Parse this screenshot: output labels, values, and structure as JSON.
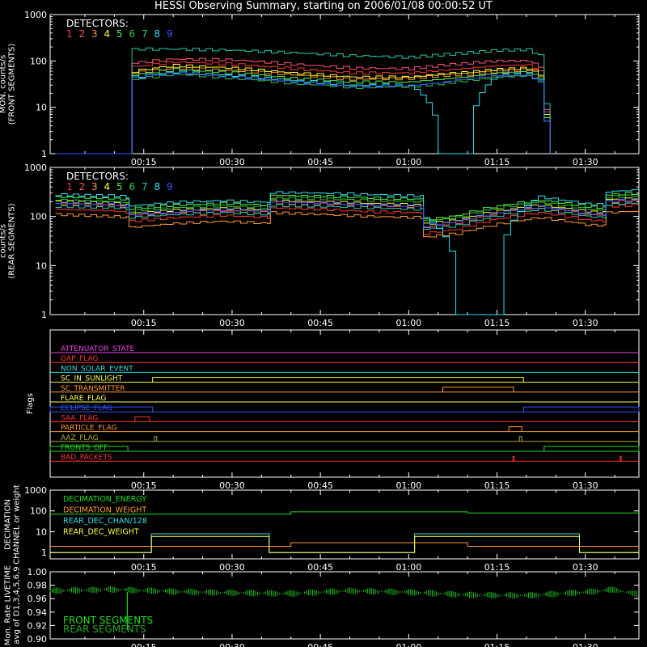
{
  "title": "HESSI Observing Summary, starting on 2006/01/08 00:00:52 UT",
  "colors": {
    "bg": "#000000",
    "axis": "#ffffff",
    "d1": "#ff3333",
    "d2": "#ff5577",
    "d3": "#ff9933",
    "d4": "#ffff33",
    "d5": "#55ee55",
    "d6": "#33cc33",
    "d7": "#22ccaa",
    "d8": "#33ddee",
    "d9": "#3355ff",
    "olive": "#aaaa33",
    "green": "#22dd22"
  },
  "x_ticks": [
    "00:15",
    "00:30",
    "00:45",
    "01:00",
    "01:15",
    "01:30"
  ],
  "x_tick_minutes": [
    15,
    30,
    45,
    60,
    75,
    90
  ],
  "x_range_minutes": [
    -0.9,
    99.1
  ],
  "chart_data": [
    {
      "type": "line",
      "ylabel": [
        "MON. counts/s",
        "(FRONT SEGMENTS)"
      ],
      "yscale": "log",
      "ylim": [
        1,
        1000
      ],
      "y_ticks": [
        "1000",
        "100",
        "10",
        "1"
      ],
      "legend_title": "DETECTORS:",
      "legend": [
        "1",
        "2",
        "3",
        "4",
        "5",
        "6",
        "7",
        "8",
        "9"
      ],
      "x": [
        0,
        12.5,
        13,
        20,
        30,
        40,
        50,
        60,
        65,
        70,
        75,
        80,
        82,
        83,
        84
      ],
      "series": [
        {
          "name": "1",
          "values": [
            1,
            1,
            75,
            95,
            85,
            68,
            55,
            55,
            62,
            70,
            80,
            82,
            60,
            8,
            1
          ]
        },
        {
          "name": "2",
          "values": [
            1,
            1,
            90,
            110,
            105,
            85,
            70,
            68,
            80,
            90,
            100,
            100,
            75,
            9,
            1
          ]
        },
        {
          "name": "3",
          "values": [
            1,
            1,
            55,
            70,
            62,
            50,
            40,
            42,
            48,
            52,
            60,
            65,
            48,
            6,
            1
          ]
        },
        {
          "name": "4",
          "values": [
            1,
            1,
            60,
            80,
            70,
            55,
            45,
            45,
            52,
            58,
            66,
            70,
            52,
            7,
            1
          ]
        },
        {
          "name": "5",
          "values": [
            1,
            1,
            50,
            65,
            55,
            42,
            35,
            35,
            40,
            46,
            55,
            58,
            42,
            6,
            1
          ]
        },
        {
          "name": "6",
          "values": [
            1,
            1,
            40,
            52,
            42,
            33,
            27,
            28,
            32,
            38,
            45,
            48,
            35,
            5,
            1
          ]
        },
        {
          "name": "7",
          "values": [
            1,
            1,
            180,
            180,
            170,
            150,
            130,
            120,
            135,
            150,
            170,
            175,
            130,
            12,
            1
          ]
        },
        {
          "name": "8",
          "values": [
            1,
            1,
            45,
            58,
            48,
            38,
            30,
            30,
            1,
            1,
            50,
            52,
            38,
            5,
            1
          ]
        },
        {
          "name": "9",
          "values": [
            1,
            1,
            42,
            55,
            45,
            35,
            28,
            29,
            34,
            42,
            48,
            50,
            36,
            5,
            1
          ]
        }
      ]
    },
    {
      "type": "line",
      "ylabel": [
        "counts/s",
        "(REAR SEGMENTS)"
      ],
      "yscale": "log",
      "ylim": [
        1,
        1000
      ],
      "y_ticks": [
        "1000",
        "100",
        "10",
        "1"
      ],
      "legend_title": "DETECTORS:",
      "legend": [
        "1",
        "2",
        "3",
        "4",
        "5",
        "6",
        "7",
        "8",
        "9"
      ],
      "x": [
        0,
        5,
        10,
        12,
        12.5,
        20,
        28,
        36,
        36.5,
        45,
        53,
        62,
        62.5,
        68,
        75,
        82,
        90,
        93,
        93.5,
        99
      ],
      "series": [
        {
          "name": "1",
          "values": [
            140,
            135,
            130,
            120,
            80,
            95,
            105,
            95,
            150,
            140,
            125,
            120,
            45,
            55,
            90,
            120,
            85,
            80,
            160,
            170
          ]
        },
        {
          "name": "2",
          "values": [
            180,
            175,
            165,
            150,
            105,
            120,
            130,
            120,
            190,
            180,
            165,
            155,
            60,
            75,
            115,
            150,
            110,
            105,
            200,
            210
          ]
        },
        {
          "name": "3",
          "values": [
            110,
            105,
            100,
            95,
            60,
            72,
            80,
            72,
            120,
            110,
            100,
            95,
            38,
            45,
            70,
            95,
            68,
            65,
            120,
            130
          ]
        },
        {
          "name": "4",
          "values": [
            200,
            195,
            185,
            170,
            115,
            135,
            145,
            135,
            210,
            200,
            185,
            170,
            70,
            85,
            130,
            170,
            125,
            120,
            220,
            240
          ]
        },
        {
          "name": "5",
          "values": [
            250,
            240,
            230,
            220,
            145,
            170,
            185,
            170,
            270,
            260,
            240,
            225,
            85,
            105,
            165,
            215,
            160,
            150,
            280,
            300
          ]
        },
        {
          "name": "6",
          "values": [
            220,
            210,
            200,
            190,
            130,
            150,
            165,
            150,
            240,
            230,
            215,
            200,
            80,
            95,
            150,
            195,
            140,
            135,
            250,
            270
          ]
        },
        {
          "name": "7",
          "values": [
            160,
            155,
            150,
            140,
            95,
            110,
            120,
            110,
            170,
            160,
            150,
            140,
            55,
            65,
            105,
            140,
            100,
            95,
            175,
            190
          ]
        },
        {
          "name": "8",
          "values": [
            280,
            270,
            265,
            250,
            165,
            195,
            210,
            195,
            310,
            300,
            280,
            260,
            95,
            1,
            1,
            250,
            180,
            175,
            320,
            350
          ]
        },
        {
          "name": "9",
          "values": [
            190,
            185,
            175,
            160,
            110,
            128,
            140,
            128,
            200,
            190,
            175,
            165,
            65,
            80,
            122,
            160,
            118,
            112,
            210,
            225
          ]
        }
      ]
    },
    {
      "type": "line",
      "ylabel": [
        "Flags"
      ],
      "flags": [
        {
          "name": "ATTENUATOR_STATE",
          "color": "#ee44ee",
          "segments": []
        },
        {
          "name": "GAP_FLAG",
          "color": "#ff3333",
          "segments": []
        },
        {
          "name": "NON_SOLAR_EVENT",
          "color": "#33dddd",
          "segments": []
        },
        {
          "name": "SC_IN_SUNLIGHT",
          "color": "#ffff55",
          "segments": [
            [
              16.5,
              79.5
            ]
          ]
        },
        {
          "name": "SC_TRANSMITTER",
          "color": "#ff9933",
          "segments": [
            [
              65.8,
              77.8
            ]
          ]
        },
        {
          "name": "FLARE_FLAG",
          "color": "#ffff55",
          "segments": []
        },
        {
          "name": "ECLIPSE_FLAG",
          "color": "#3355ff",
          "segments": [
            [
              -0.9,
              16.5
            ],
            [
              79.5,
              99.1
            ]
          ]
        },
        {
          "name": "SAA_FLAG",
          "color": "#ff3333",
          "segments": [
            [
              13.5,
              16.0
            ]
          ]
        },
        {
          "name": "PARTICLE_FLAG",
          "color": "#ff9933",
          "segments": [
            [
              77.0,
              79.2
            ]
          ]
        },
        {
          "name": "AAZ_FLAG",
          "color": "#aaaa33",
          "segments": [
            [
              16.8,
              17.2
            ],
            [
              78.8,
              79.2
            ]
          ]
        },
        {
          "name": "FRONTS_OFF",
          "color": "#22dd22",
          "segments": [
            [
              -0.9,
              12.3
            ],
            [
              83.0,
              99.1
            ]
          ]
        },
        {
          "name": "BAD_PACKETS",
          "color": "#ff3333",
          "segments": [
            [
              77.7,
              77.9
            ],
            [
              95.9,
              96.1
            ]
          ]
        }
      ]
    },
    {
      "type": "line",
      "ylabel": [
        "DECIMATION",
        "CHANNEL or weight"
      ],
      "yscale": "log",
      "ylim": [
        0.5,
        1000
      ],
      "y_ticks": [
        "1000",
        "100",
        "10",
        "1"
      ],
      "legend": [
        "DECIMATION_ENERGY",
        "DECIMATION_WEIGHT",
        "REAR_DEC_CHAN/128",
        "REAR_DEC_WEIGHT"
      ],
      "series": [
        {
          "name": "DECIMATION_ENERGY",
          "color": "#22dd22",
          "x": [
            -0.9,
            40,
            40,
            70,
            70,
            99.1
          ],
          "values": [
            70,
            70,
            90,
            90,
            80,
            80
          ]
        },
        {
          "name": "DECIMATION_WEIGHT",
          "color": "#ff9933",
          "x": [
            -0.9,
            40,
            40,
            70,
            70,
            99.1
          ],
          "values": [
            2,
            2,
            3,
            3,
            2,
            2
          ]
        },
        {
          "name": "REAR_DEC_CHAN/128",
          "color": "#33ddee",
          "x": [
            -0.9,
            16.3,
            16.3,
            36.3,
            36.3,
            61,
            61,
            89,
            89,
            99.1
          ],
          "values": [
            1,
            1,
            8,
            8,
            1,
            1,
            8,
            8,
            1,
            1
          ]
        },
        {
          "name": "REAR_DEC_WEIGHT",
          "color": "#ffff55",
          "x": [
            -0.9,
            16.3,
            16.3,
            36.3,
            36.3,
            61,
            61,
            89,
            89,
            99.1
          ],
          "values": [
            1,
            1,
            6,
            6,
            1,
            1,
            6,
            6,
            1,
            1
          ]
        }
      ]
    },
    {
      "type": "scatter",
      "ylabel": [
        "Mon. Rate LIVETIME",
        "avg of D1,3,4,5,6,9"
      ],
      "ylim": [
        0.9,
        1.0
      ],
      "y_ticks": [
        "1.00",
        "0.98",
        "0.96",
        "0.94",
        "0.92",
        "0.90"
      ],
      "legend": [
        "FRONT SEGMENTS",
        "REAR SEGMENTS"
      ],
      "x": [
        -0.9,
        10,
        20,
        30,
        40,
        50,
        60,
        70,
        80,
        90,
        95,
        99.1
      ],
      "series": [
        {
          "name": "FRONT SEGMENTS",
          "values": [
            0.972,
            0.974,
            0.971,
            0.969,
            0.968,
            0.972,
            0.97,
            0.966,
            0.965,
            0.97,
            0.974,
            0.966
          ]
        },
        {
          "name": "REAR SEGMENTS",
          "values": [
            0.971,
            0.973,
            0.97,
            0.968,
            0.967,
            0.971,
            0.969,
            0.965,
            0.964,
            0.969,
            0.973,
            0.965
          ]
        }
      ]
    }
  ]
}
